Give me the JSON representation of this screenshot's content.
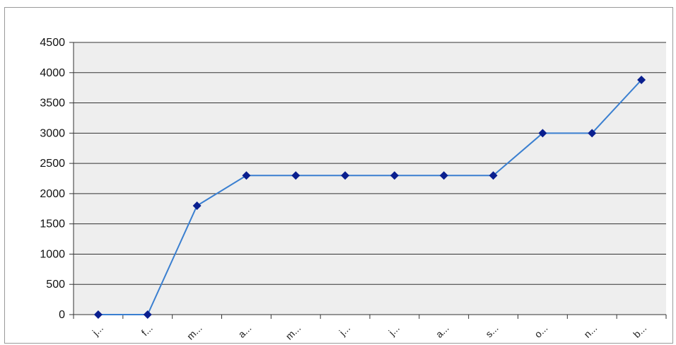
{
  "chart_data": {
    "type": "line",
    "categories": [
      "j...",
      "f...",
      "m...",
      "a...",
      "m...",
      "j...",
      "j...",
      "a...",
      "s...",
      "o...",
      "n...",
      "b..."
    ],
    "series": [
      {
        "values": [
          0,
          0,
          1800,
          2300,
          2300,
          2300,
          2300,
          2300,
          2300,
          3000,
          3000,
          3880
        ]
      }
    ],
    "ylim": [
      0,
      4500
    ],
    "yticks": [
      0,
      500,
      1000,
      1500,
      2000,
      2500,
      3000,
      3500,
      4000,
      4500
    ],
    "grid": true,
    "colors": {
      "line": "#3a7fd0",
      "marker": "#0a1f8f",
      "plot_bg": "#eeeeee",
      "gridline": "#333333"
    }
  }
}
